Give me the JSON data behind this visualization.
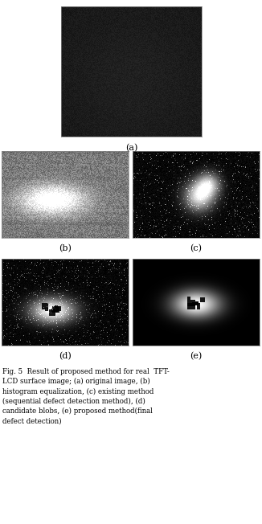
{
  "label_a": "(a)",
  "label_b": "(b)",
  "label_c": "(c)",
  "label_d": "(d)",
  "label_e": "(e)",
  "fig_width": 3.26,
  "fig_height": 6.52,
  "dpi": 100,
  "bg_color": "#ffffff",
  "seed": 42,
  "caption_line1": "Fig. 5  Result of proposed method for real  TFT-",
  "caption_line2": "LCD surface image; (a) original image, (b)",
  "caption_line3": "histogram equalization, (c) existing method",
  "caption_line4": "(sequential defect detection method), (d)",
  "caption_line5": "candidate blobs, (e) proposed method(final",
  "caption_line6": "defect detection)"
}
